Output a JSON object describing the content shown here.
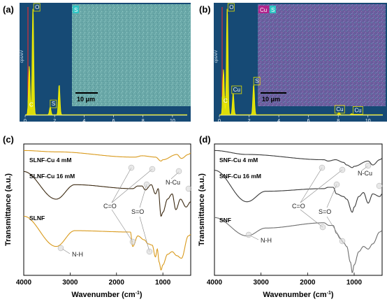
{
  "colors": {
    "eds_bg": "#164a75",
    "eds_spectrum": "#f2ee00",
    "map_base_a": "#6aa8a8",
    "map_base_b": "#6a5f9e",
    "ftir_orange": "#d99a1c",
    "ftir_brown": "#3c2a12",
    "ftir_black": "#3a3a3a",
    "ftir_gray": "#6e6e6e"
  },
  "chart_data": [
    {
      "panel": "(a)",
      "type": "line",
      "xlabel": "",
      "ylabel": "cps/eV",
      "xlim": [
        0,
        11
      ],
      "x_ticks": [
        "0",
        "2",
        "4",
        "6",
        "8",
        "10"
      ],
      "peak_labels": [
        "C",
        "O",
        "S"
      ],
      "map_labels": [
        "S"
      ],
      "scale_bar": "10 μm",
      "series": [
        {
          "x": [
            0.28,
            0.53,
            1.7,
            2.31
          ],
          "y": [
            0.45,
            1.0,
            0.07,
            0.28
          ]
        }
      ]
    },
    {
      "panel": "(b)",
      "type": "line",
      "xlabel": "",
      "ylabel": "cps/eV",
      "xlim": [
        0,
        11
      ],
      "x_ticks": [
        "0",
        "2",
        "4",
        "6",
        "8",
        "10"
      ],
      "peak_labels": [
        "C",
        "O",
        "Cu",
        "S",
        "Cu",
        "Cu"
      ],
      "map_labels": [
        "Cu",
        "S"
      ],
      "scale_bar": "10 μm",
      "series": [
        {
          "x": [
            0.28,
            0.53,
            0.93,
            2.31,
            8.05,
            8.9
          ],
          "y": [
            0.42,
            1.0,
            0.2,
            0.28,
            0.02,
            0.01
          ]
        }
      ]
    },
    {
      "panel": "(c)",
      "type": "line",
      "xlabel": "Wavenumber (cm-1)",
      "ylabel": "Transmittance (a.u.)",
      "xlim": [
        4000,
        400
      ],
      "x_ticks": [
        "4000",
        "3000",
        "2000",
        "1000"
      ],
      "annotations": [
        "N-Cu",
        "C=O",
        "S=O",
        "N-H"
      ],
      "series": [
        {
          "name": "SLNF-Cu 4 mM",
          "x": [
            4000,
            3300,
            1650,
            1600,
            1450,
            1160,
            1040,
            1000,
            700,
            600,
            450,
            400
          ],
          "y": [
            0.95,
            0.94,
            0.9,
            0.9,
            0.91,
            0.9,
            0.87,
            0.88,
            0.92,
            0.89,
            0.92,
            0.93
          ]
        },
        {
          "name": "SLNF-Cu 16 mM",
          "x": [
            4000,
            3300,
            2900,
            1650,
            1540,
            1450,
            1380,
            1250,
            1160,
            1100,
            1040,
            1000,
            900,
            800,
            720,
            620,
            500,
            400
          ],
          "y": [
            0.79,
            0.58,
            0.69,
            0.66,
            0.68,
            0.68,
            0.65,
            0.69,
            0.62,
            0.66,
            0.45,
            0.48,
            0.58,
            0.62,
            0.5,
            0.58,
            0.52,
            0.56
          ]
        },
        {
          "name": "SLNF",
          "x": [
            4000,
            3300,
            2900,
            1700,
            1650,
            1540,
            1400,
            1320,
            1230,
            1160,
            1120,
            1080,
            1040,
            1000,
            900,
            800,
            700,
            600,
            450,
            400
          ],
          "y": [
            0.45,
            0.22,
            0.34,
            0.33,
            0.22,
            0.3,
            0.27,
            0.24,
            0.23,
            0.14,
            0.2,
            0.1,
            0.04,
            0.08,
            0.16,
            0.18,
            0.15,
            0.13,
            0.3,
            0.31
          ]
        }
      ]
    },
    {
      "panel": "(d)",
      "type": "line",
      "xlabel": "Wavenumber (cm-1)",
      "ylabel": "Transmittance (a.u.)",
      "xlim": [
        4000,
        400
      ],
      "x_ticks": [
        "4000",
        "3000",
        "2000",
        "1000"
      ],
      "annotations": [
        "N-Cu",
        "C=O",
        "S=O",
        "N-H"
      ],
      "series": [
        {
          "name": "SNF-Cu 4 mM",
          "x": [
            4000,
            3300,
            1650,
            1560,
            1400,
            1230,
            1160,
            1040,
            1000,
            700,
            600,
            450,
            400
          ],
          "y": [
            0.95,
            0.92,
            0.88,
            0.87,
            0.88,
            0.86,
            0.84,
            0.82,
            0.83,
            0.87,
            0.84,
            0.88,
            0.89
          ]
        },
        {
          "name": "SNF-Cu 16 mM",
          "x": [
            4000,
            3300,
            2900,
            1650,
            1560,
            1450,
            1380,
            1230,
            1160,
            1040,
            1000,
            900,
            800,
            700,
            600,
            450,
            400
          ],
          "y": [
            0.8,
            0.56,
            0.64,
            0.66,
            0.67,
            0.67,
            0.62,
            0.6,
            0.58,
            0.48,
            0.52,
            0.6,
            0.63,
            0.55,
            0.62,
            0.6,
            0.62
          ]
        },
        {
          "name": "SNF",
          "x": [
            4000,
            3300,
            2900,
            1650,
            1540,
            1450,
            1380,
            1300,
            1230,
            1160,
            1080,
            1040,
            1000,
            900,
            800,
            700,
            600,
            450,
            400
          ],
          "y": [
            0.44,
            0.3,
            0.36,
            0.4,
            0.38,
            0.38,
            0.32,
            0.28,
            0.25,
            0.22,
            0.1,
            0.02,
            0.08,
            0.18,
            0.22,
            0.2,
            0.24,
            0.33,
            0.34
          ]
        }
      ]
    }
  ]
}
